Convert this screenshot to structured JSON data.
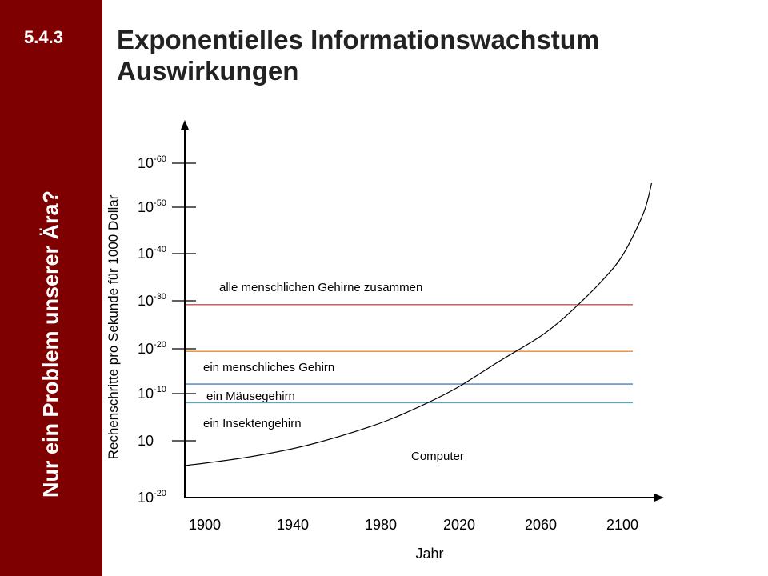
{
  "slide": {
    "section_number": "5.4.3",
    "sidebar_text": "Nur ein Problem unserer Ära?",
    "title_line1": "Exponentielles Informationswachstum",
    "title_line2": "Auswirkungen"
  },
  "colors": {
    "sidebar": "#7e0000",
    "axis": "#000000"
  },
  "chart_data": {
    "type": "line",
    "title": "",
    "xlabel": "Jahr",
    "ylabel": "Rechenschritte pro Sekunde für 1000 Dollar",
    "x_ticks": [
      "1900",
      "1940",
      "1980",
      "2020",
      "2060",
      "2100"
    ],
    "y_ticks": [
      {
        "base": "10",
        "exp": "-20"
      },
      {
        "base": "10",
        "exp": ""
      },
      {
        "base": "10",
        "exp": "-10"
      },
      {
        "base": "10",
        "exp": "-20"
      },
      {
        "base": "10",
        "exp": "-30"
      },
      {
        "base": "10",
        "exp": "-40"
      },
      {
        "base": "10",
        "exp": "-50"
      },
      {
        "base": "10",
        "exp": "-60"
      }
    ],
    "reference_lines": [
      {
        "label": "alle menschlichen Gehirne zusammen",
        "level": 3.6,
        "color": "#c0504d"
      },
      {
        "label": "ein menschliches Gehirn",
        "level": 2.6,
        "color": "#e8882e"
      },
      {
        "label": "ein Mäusegehirn",
        "level": 1.9,
        "color": "#4a7ebf"
      },
      {
        "label": "ein Insektengehirn",
        "level": 1.5,
        "color": "#4bacc6"
      }
    ],
    "series": [
      {
        "name": "Computer",
        "x": [
          1890,
          1920,
          1950,
          1980,
          2000,
          2020,
          2040,
          2060,
          2070,
          2080,
          2090,
          2100,
          2110,
          2114
        ],
        "y": [
          0.15,
          0.33,
          0.6,
          1.0,
          1.36,
          1.8,
          2.36,
          2.9,
          3.24,
          3.65,
          4.1,
          4.65,
          5.55,
          6.2
        ]
      }
    ],
    "series_label": "Computer",
    "grid": false,
    "legend": "none"
  }
}
